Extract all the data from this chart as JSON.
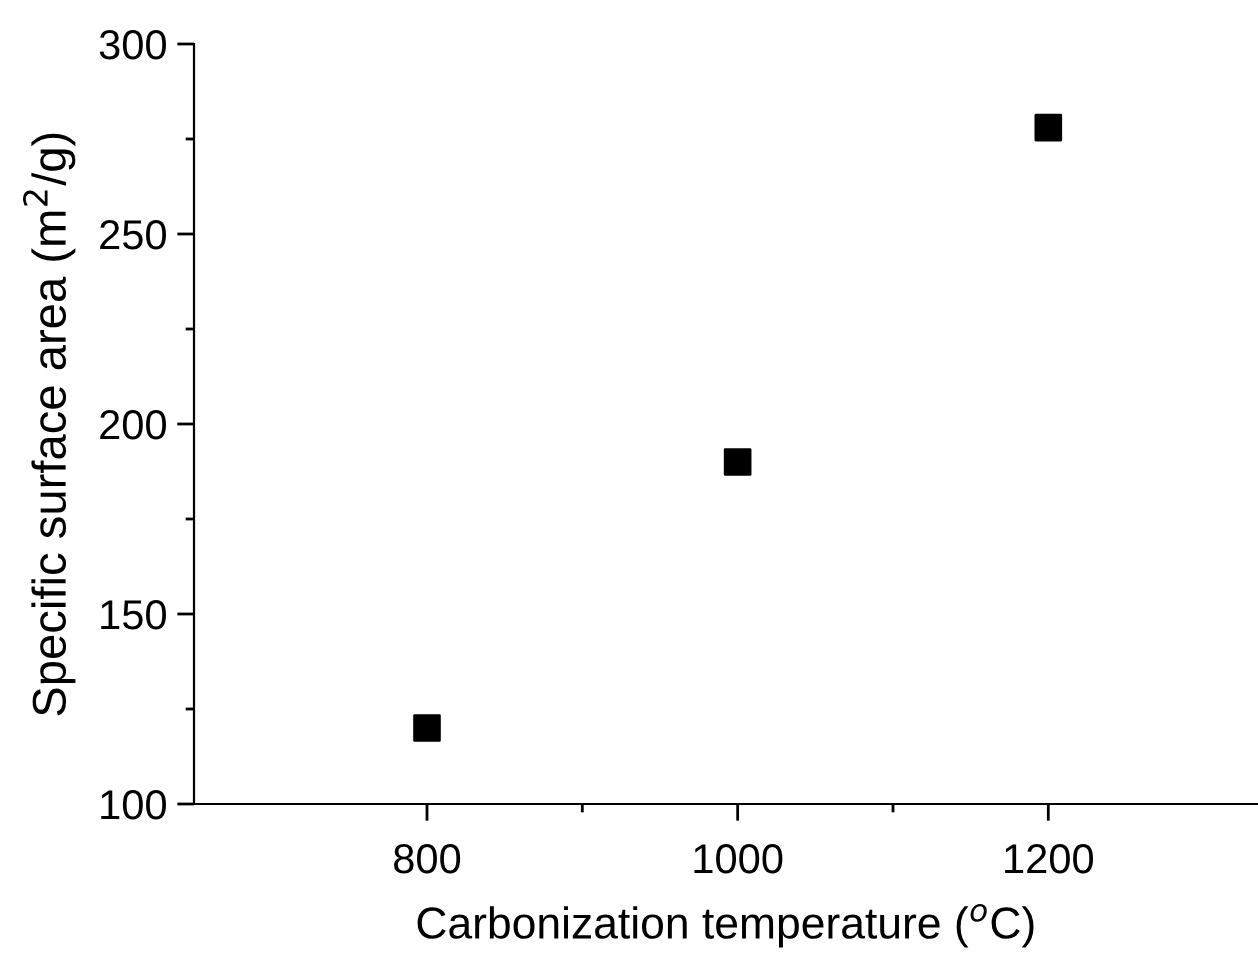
{
  "chart_data": {
    "type": "scatter",
    "xlabel": "Carbonization temperature ($^{o}$C)",
    "ylabel": "Specific surface area (m$^{2}$/g)",
    "x": [
      800,
      1000,
      1200
    ],
    "series": [
      {
        "color": "#000000",
        "values": [
          120,
          190,
          278
        ]
      }
    ],
    "marker": "square",
    "grid": false,
    "legend": false,
    "xlim": [
      650,
      1335
    ],
    "ylim": [
      100,
      300
    ],
    "xticks": [
      800,
      {
        "value": 900,
        "label": null
      },
      1000,
      {
        "value": 1100,
        "label": null
      },
      1200
    ],
    "yticks": [
      100,
      {
        "value": 125,
        "label": null
      },
      150,
      {
        "value": 175,
        "label": null
      },
      200,
      {
        "value": 225,
        "label": null
      },
      250,
      {
        "value": 275,
        "label": null
      },
      300
    ]
  }
}
